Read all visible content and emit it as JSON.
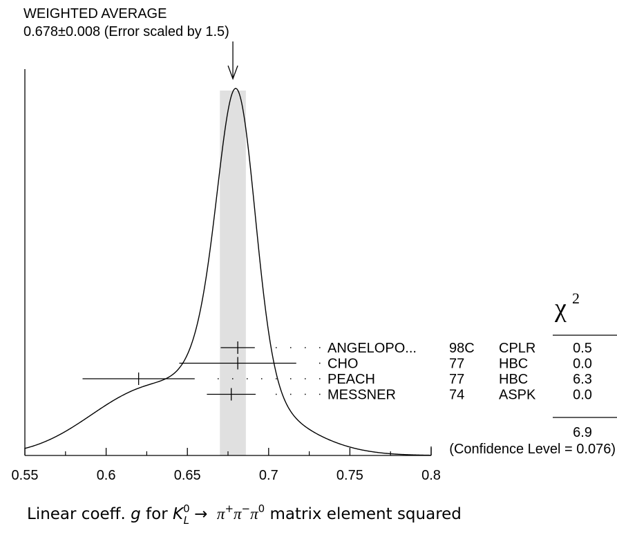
{
  "chart_data": {
    "type": "ideogram",
    "title": "WEIGHTED AVERAGE",
    "subtitle": "0.678±0.008 (Error scaled by 1.5)",
    "average": 0.678,
    "average_error": 0.008,
    "xlim": [
      0.55,
      0.8
    ],
    "x_ticks": [
      "0.55",
      "0.6",
      "0.65",
      "0.7",
      "0.75",
      "0.8"
    ],
    "chi2_header": "χ",
    "chi2_header_sup": "2",
    "measurements": [
      {
        "name": "ANGELOPO...",
        "year": "98C",
        "tech": "CPLR",
        "value": 0.681,
        "err": 0.007,
        "chi2": "0.5"
      },
      {
        "name": "CHO",
        "year": "77",
        "tech": "HBC",
        "value": 0.681,
        "err": 0.024,
        "chi2": "0.0"
      },
      {
        "name": "PEACH",
        "year": "77",
        "tech": "HBC",
        "value": 0.62,
        "err": 0.023,
        "chi2": "6.3"
      },
      {
        "name": "MESSNER",
        "year": "74",
        "tech": "ASPK",
        "value": 0.677,
        "err": 0.01,
        "chi2": "0.0"
      }
    ],
    "chi2_total": "6.9",
    "confidence": "(Confidence Level = 0.076)",
    "xlabel": {
      "prefix": "Linear coeff. ",
      "g": "g",
      "for": " for ",
      "K": "K",
      "K_sup": "0",
      "K_sub": "L",
      "arrow": " → ",
      "pi1": "π",
      "pi1_sup": "+",
      "pi2": "π",
      "pi2_sup": "−",
      "pi3": "π",
      "pi3_sup": "0",
      "suffix": " matrix element squared"
    }
  }
}
